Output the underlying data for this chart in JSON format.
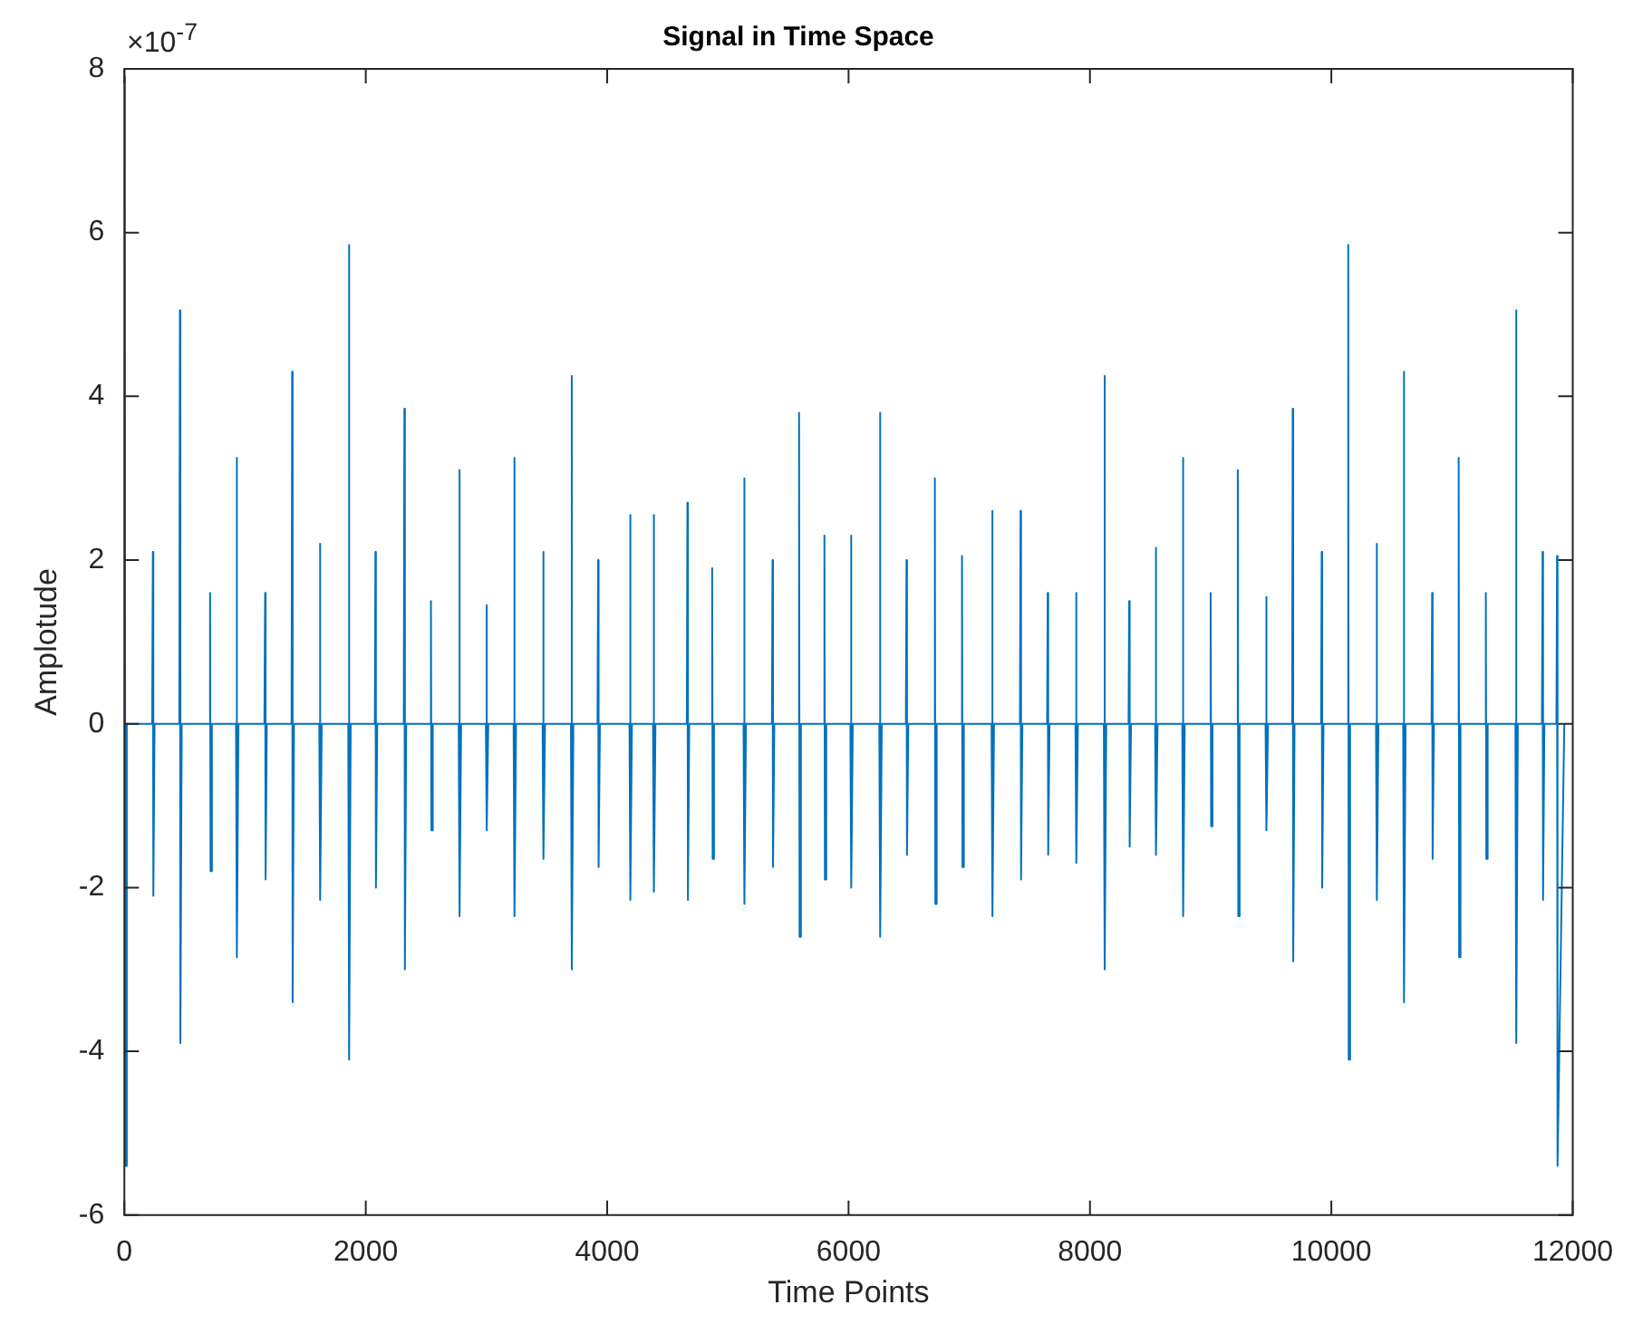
{
  "chart_data": {
    "type": "line",
    "title": "Signal in Time Space",
    "xlabel": "Time Points",
    "ylabel": "Amplotude",
    "annotations": [
      "×10$^{-7}$"
    ],
    "xlim": [
      0,
      12000
    ],
    "xticks": [
      0,
      2000,
      4000,
      6000,
      8000,
      10000,
      12000
    ],
    "ylim": [
      -6,
      8
    ],
    "yticks": [
      -6,
      -4,
      -2,
      0,
      2,
      4,
      6,
      8
    ],
    "marker": "none",
    "line_style": "solid",
    "series": [
      {
        "color": "#0072bd",
        "x": [
          0,
          4,
          8,
          20,
          230,
          236,
          240,
          250,
          455,
          460,
          464,
          475,
          705,
          710,
          714,
          725,
          925,
          930,
          934,
          945,
          1160,
          1166,
          1170,
          1180,
          1385,
          1390,
          1394,
          1405,
          1615,
          1620,
          1624,
          1635,
          1855,
          1860,
          1864,
          1875,
          2075,
          2080,
          2084,
          2095,
          2315,
          2320,
          2324,
          2335,
          2535,
          2540,
          2544,
          2555,
          2770,
          2775,
          2779,
          2790,
          2995,
          3000,
          3004,
          3015,
          3225,
          3230,
          3234,
          3245,
          3465,
          3470,
          3474,
          3485,
          3700,
          3705,
          3709,
          3720,
          3920,
          3925,
          3929,
          3940,
          4185,
          4190,
          4194,
          4205,
          4380,
          4385,
          4389,
          4400,
          4660,
          4665,
          4669,
          4680,
          4865,
          4870,
          4874,
          4885,
          5130,
          5135,
          5139,
          5150,
          5365,
          5370,
          5374,
          5385,
          5585,
          5590,
          5594,
          5605,
          5795,
          5800,
          5804,
          5815,
          6015,
          6020,
          6024,
          6035,
          6255,
          6260,
          6264,
          6275,
          6475,
          6480,
          6484,
          6495,
          6710,
          6715,
          6719,
          6730,
          6935,
          6940,
          6944,
          6955,
          7185,
          7190,
          7194,
          7205,
          7420,
          7425,
          7429,
          7440,
          7645,
          7650,
          7654,
          7665,
          7880,
          7885,
          7889,
          7900,
          8115,
          8120,
          8124,
          8135,
          8320,
          8325,
          8329,
          8340,
          8540,
          8545,
          8549,
          8560,
          8765,
          8770,
          8774,
          8785,
          8995,
          9000,
          9004,
          9015,
          9220,
          9225,
          9229,
          9240,
          9455,
          9460,
          9464,
          9475,
          9675,
          9680,
          9684,
          9695,
          9915,
          9920,
          9924,
          9935,
          10135,
          10140,
          10144,
          10155,
          10370,
          10375,
          10379,
          10390,
          10595,
          10600,
          10604,
          10615,
          10830,
          10835,
          10839,
          10850,
          11050,
          11055,
          11059,
          11070,
          11275,
          11280,
          11284,
          11295,
          11525,
          11530,
          11534,
          11545,
          11745,
          11750,
          11754,
          11765,
          11865,
          11870,
          11874,
          11930
        ],
        "values": [
          0,
          7.9,
          -5.4,
          0,
          0,
          2.1,
          -2.1,
          0,
          0,
          5.05,
          -3.9,
          0,
          0,
          1.6,
          -1.8,
          0,
          0,
          3.25,
          -2.85,
          0,
          0,
          1.6,
          -1.9,
          0,
          0,
          4.3,
          -3.4,
          0,
          0,
          2.2,
          -2.15,
          0,
          0,
          5.85,
          -4.1,
          0,
          0,
          2.1,
          -2.0,
          0,
          0,
          3.85,
          -3.0,
          0,
          0,
          1.5,
          -1.3,
          0,
          0,
          3.1,
          -2.35,
          0,
          0,
          1.45,
          -1.3,
          0,
          0,
          3.25,
          -2.35,
          0,
          0,
          2.1,
          -1.65,
          0,
          0,
          4.25,
          -3.0,
          0,
          0,
          2.0,
          -1.75,
          0,
          0,
          2.55,
          -2.15,
          0,
          0,
          2.55,
          -2.05,
          0,
          0,
          2.7,
          -2.15,
          0,
          0,
          1.9,
          -1.65,
          0,
          0,
          3.0,
          -2.2,
          0,
          0,
          2.0,
          -1.75,
          0,
          0,
          3.8,
          -2.6,
          0,
          0,
          2.3,
          -1.9,
          0,
          0,
          2.3,
          -2.0,
          0,
          0,
          3.8,
          -2.6,
          0,
          0,
          2.0,
          -1.6,
          0,
          0,
          3.0,
          -2.2,
          0,
          0,
          2.05,
          -1.75,
          0,
          0,
          2.6,
          -2.35,
          0,
          0,
          2.6,
          -1.9,
          0,
          0,
          1.6,
          -1.6,
          0,
          0,
          1.6,
          -1.7,
          0,
          0,
          4.25,
          -3.0,
          0,
          0,
          1.5,
          -1.5,
          0,
          0,
          2.15,
          -1.6,
          0,
          0,
          3.25,
          -2.35,
          0,
          0,
          1.6,
          -1.25,
          0,
          0,
          3.1,
          -2.35,
          0,
          0,
          1.55,
          -1.3,
          0,
          0,
          3.85,
          -2.9,
          0,
          0,
          2.1,
          -2.0,
          0,
          0,
          5.85,
          -4.1,
          0,
          0,
          2.2,
          -2.15,
          0,
          0,
          4.3,
          -3.4,
          0,
          0,
          1.6,
          -1.65,
          0,
          0,
          3.25,
          -2.85,
          0,
          0,
          1.6,
          -1.65,
          0,
          0,
          5.05,
          -3.9,
          0,
          0,
          2.1,
          -2.15,
          0,
          0,
          2.05,
          -5.4,
          0
        ]
      }
    ]
  }
}
